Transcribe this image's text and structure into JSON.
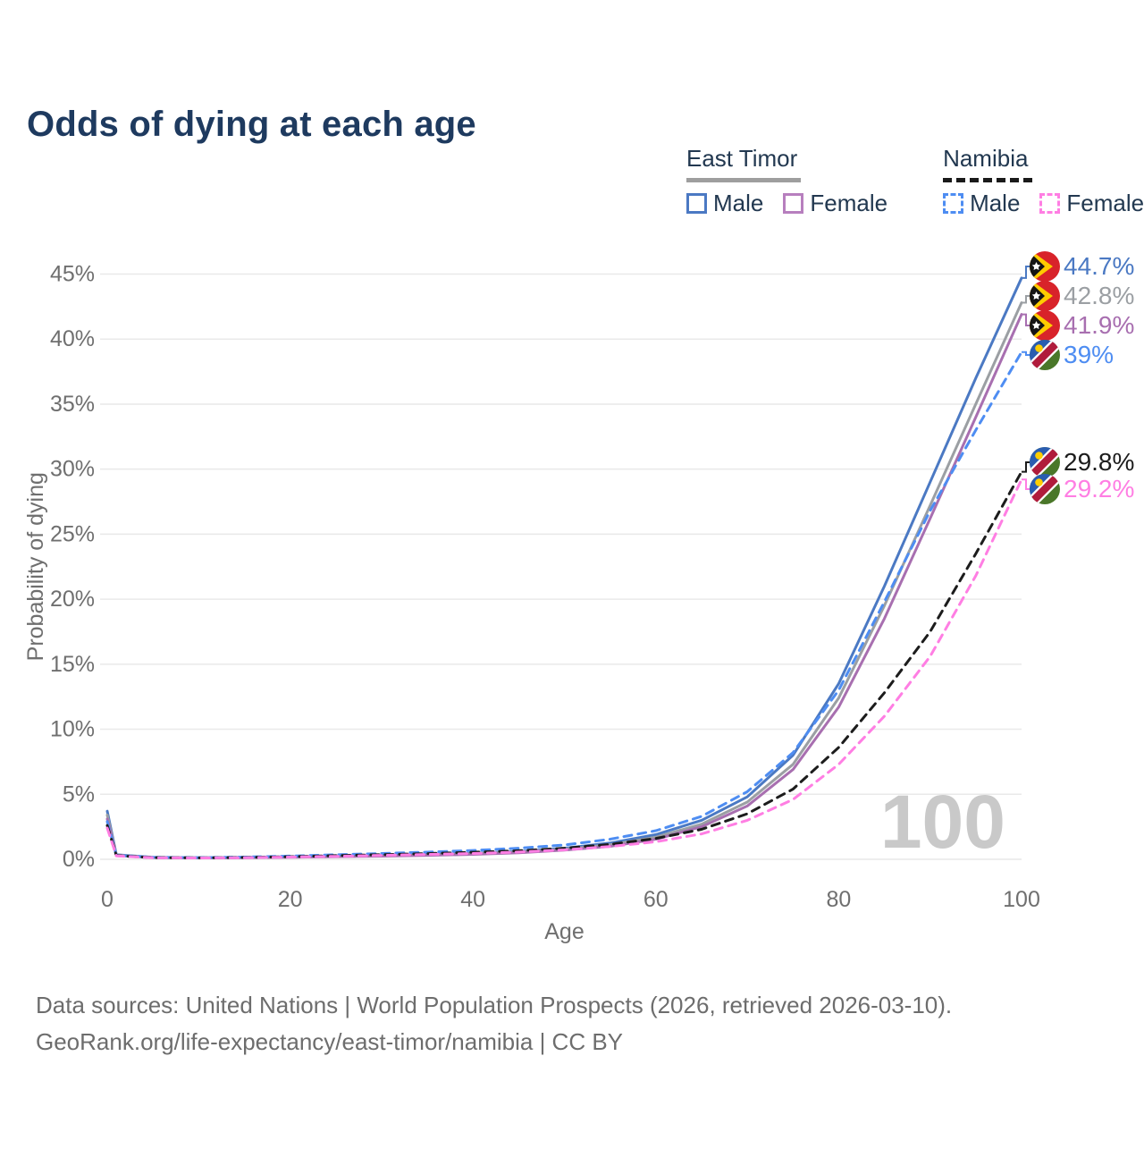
{
  "title": "Odds of dying at each age",
  "legend": {
    "groups": [
      {
        "label": "East Timor",
        "line_style": "solid",
        "underline_color": "#9e9e9e",
        "items": [
          {
            "label": "Male",
            "color": "#4b79c3"
          },
          {
            "label": "Female",
            "color": "#b77fbe"
          }
        ]
      },
      {
        "label": "Namibia",
        "line_style": "dashed",
        "underline_color": "#1a1a1a",
        "items": [
          {
            "label": "Male",
            "color": "#4e8df2"
          },
          {
            "label": "Female",
            "color": "#ff7ee3"
          }
        ]
      }
    ]
  },
  "chart_data": {
    "type": "line",
    "title": "Odds of dying at each age",
    "xlabel": "Age",
    "ylabel": "Probability of dying",
    "xlim": [
      0,
      100
    ],
    "ylim": [
      0,
      45
    ],
    "grid": "horizontal",
    "gridline_color": "#e9e9e9",
    "axis_text_color": "#6f6f6f",
    "watermark": "100",
    "watermark_color": "#c9c9c9",
    "x_ticks": [
      0,
      20,
      40,
      60,
      80,
      100
    ],
    "x_tick_labels": [
      "0",
      "20",
      "40",
      "60",
      "80",
      "100"
    ],
    "y_ticks": [
      0,
      5,
      10,
      15,
      20,
      25,
      30,
      35,
      40,
      45
    ],
    "y_tick_labels": [
      "0%",
      "5%",
      "10%",
      "15%",
      "20%",
      "25%",
      "30%",
      "35%",
      "40%",
      "45%"
    ],
    "x": [
      0,
      1,
      5,
      10,
      15,
      20,
      25,
      30,
      35,
      40,
      45,
      50,
      55,
      60,
      65,
      70,
      75,
      80,
      85,
      90,
      95,
      100
    ],
    "series": [
      {
        "name": "East Timor Male",
        "color": "#4b79c3",
        "dashed": false,
        "flag": "east-timor",
        "end_label": "44.7%",
        "values": [
          3.7,
          0.35,
          0.15,
          0.12,
          0.15,
          0.2,
          0.25,
          0.3,
          0.37,
          0.47,
          0.6,
          0.85,
          1.25,
          1.9,
          3.0,
          4.8,
          8.0,
          13.5,
          21.0,
          29.0,
          37.0,
          44.7
        ]
      },
      {
        "name": "East Timor",
        "color": "#9b9fa3",
        "dashed": false,
        "flag": "east-timor",
        "end_label": "42.8%",
        "values": [
          3.4,
          0.32,
          0.14,
          0.11,
          0.13,
          0.18,
          0.22,
          0.27,
          0.33,
          0.42,
          0.55,
          0.78,
          1.12,
          1.7,
          2.7,
          4.4,
          7.3,
          12.4,
          19.5,
          27.2,
          35.0,
          42.8
        ]
      },
      {
        "name": "East Timor Female",
        "color": "#a86fb0",
        "dashed": false,
        "flag": "east-timor",
        "end_label": "41.9%",
        "values": [
          3.1,
          0.3,
          0.13,
          0.1,
          0.12,
          0.16,
          0.2,
          0.24,
          0.3,
          0.38,
          0.5,
          0.7,
          1.0,
          1.55,
          2.5,
          4.1,
          6.9,
          11.7,
          18.5,
          26.2,
          34.0,
          41.9
        ]
      },
      {
        "name": "Namibia Male",
        "color": "#4e8df2",
        "dashed": true,
        "flag": "namibia",
        "end_label": "39%",
        "values": [
          2.9,
          0.3,
          0.15,
          0.13,
          0.17,
          0.25,
          0.35,
          0.45,
          0.55,
          0.68,
          0.85,
          1.1,
          1.55,
          2.2,
          3.3,
          5.2,
          8.2,
          13.0,
          19.8,
          26.8,
          33.0,
          39.0
        ]
      },
      {
        "name": "Namibia",
        "color": "#1c1c1c",
        "dashed": true,
        "flag": "namibia",
        "end_label": "29.8%",
        "values": [
          2.6,
          0.28,
          0.13,
          0.11,
          0.14,
          0.2,
          0.28,
          0.36,
          0.44,
          0.54,
          0.66,
          0.85,
          1.15,
          1.6,
          2.3,
          3.5,
          5.4,
          8.6,
          12.8,
          17.5,
          23.5,
          29.8
        ]
      },
      {
        "name": "Namibia Female",
        "color": "#ff7ee3",
        "dashed": true,
        "flag": "namibia",
        "end_label": "29.2%",
        "values": [
          2.4,
          0.26,
          0.12,
          0.1,
          0.12,
          0.17,
          0.23,
          0.3,
          0.37,
          0.45,
          0.56,
          0.72,
          0.98,
          1.35,
          1.95,
          3.0,
          4.6,
          7.3,
          11.0,
          15.6,
          21.8,
          29.2
        ]
      }
    ]
  },
  "footer": {
    "line1": "Data sources: United Nations | World Population Prospects (2026, retrieved 2026-03-10).",
    "line2": "GeoRank.org/life-expectancy/east-timor/namibia | CC BY"
  }
}
